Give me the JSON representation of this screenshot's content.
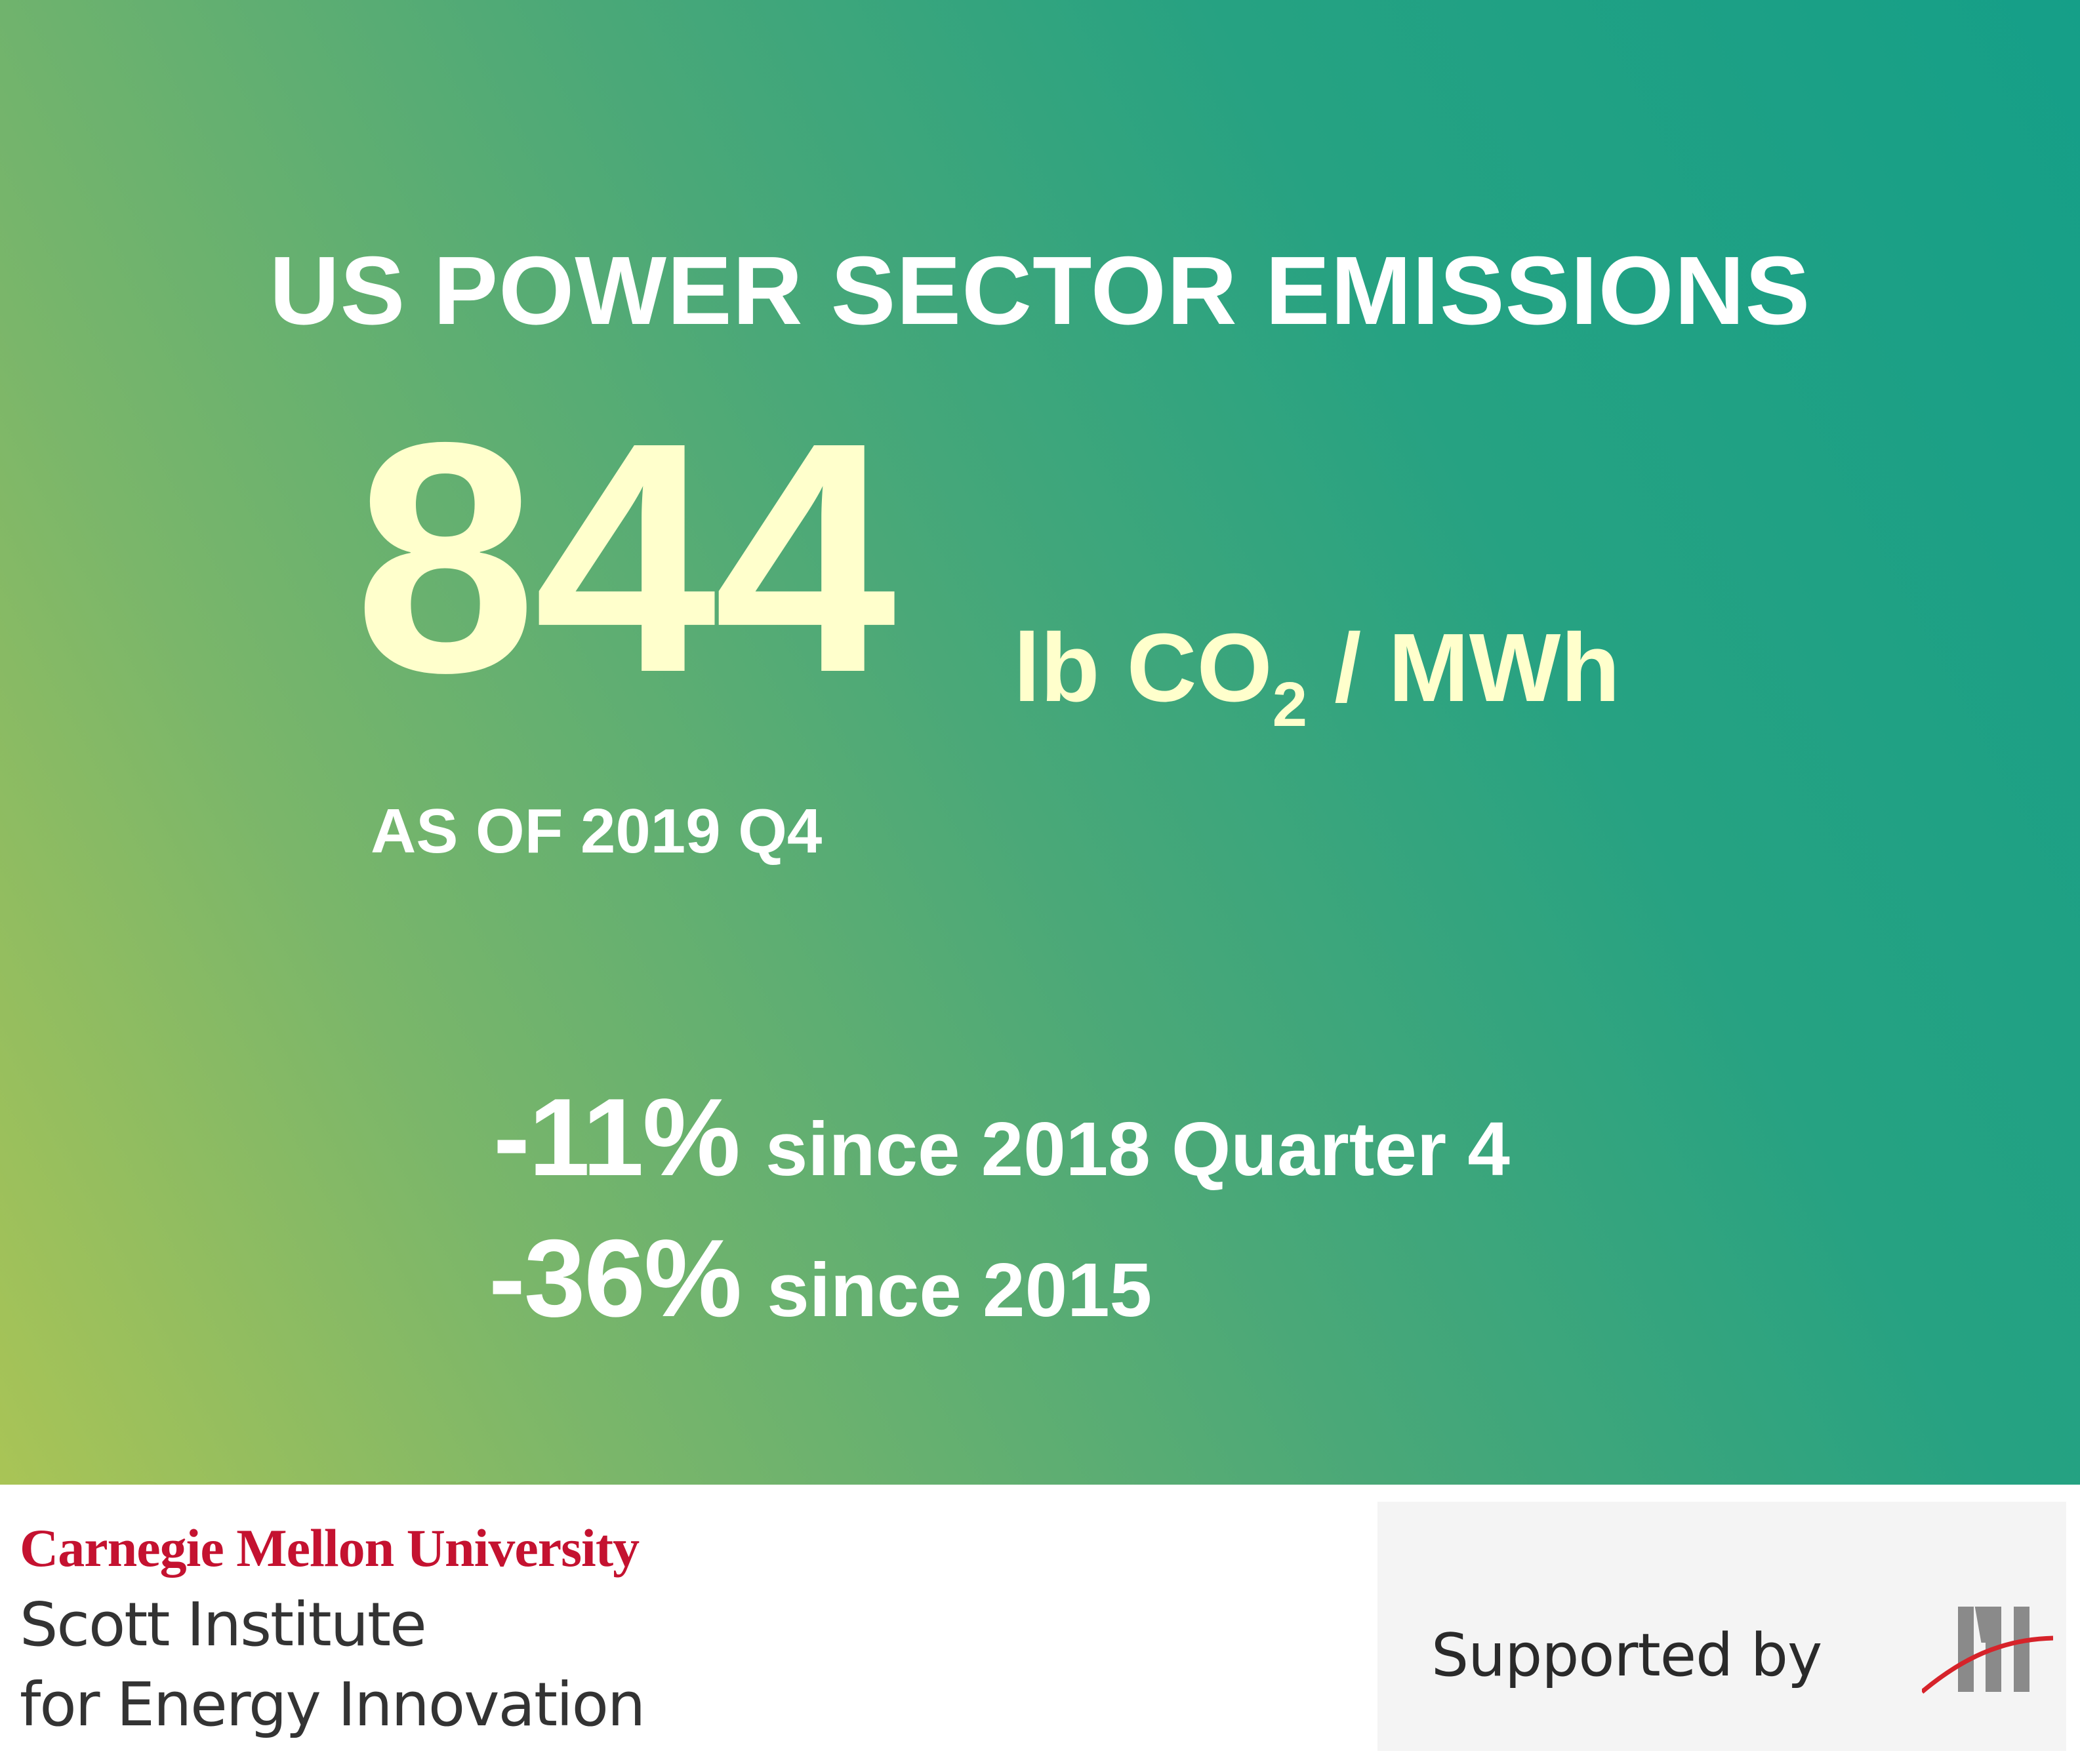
{
  "headline": "US POWER SECTOR EMISSIONS",
  "metric": {
    "value": "844",
    "unit_prefix": "lb CO",
    "unit_subscript": "2",
    "unit_suffix": " / MWh",
    "as_of": "AS OF 2019 Q4"
  },
  "changes": [
    {
      "percent": "-11%",
      "label": "since 2018 Quarter 4"
    },
    {
      "percent": "-36%",
      "label": "since 2015"
    }
  ],
  "footer": {
    "university": "Carnegie Mellon University",
    "institute_line1": "Scott Institute",
    "institute_line2": "for Energy Innovation",
    "supported_by": "Supported by",
    "sponsor_logo": "MI"
  },
  "colors": {
    "highlight": "#ffffcc",
    "brand_red": "#c41230",
    "gradient_start": "#a9c456",
    "gradient_end": "#159f88"
  }
}
